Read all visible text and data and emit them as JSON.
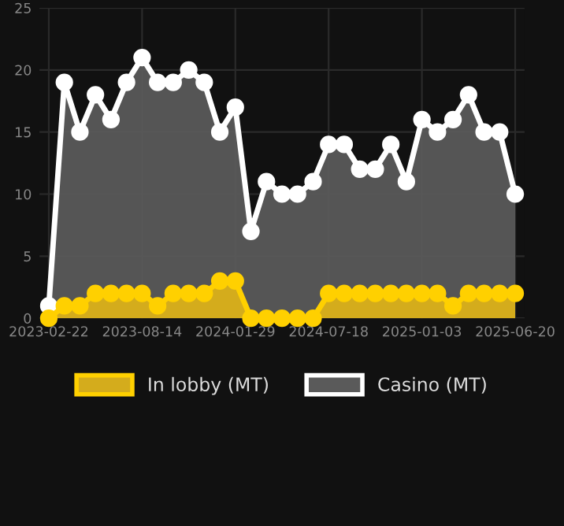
{
  "chart_data": {
    "type": "area",
    "categories": [
      "2023-02-22",
      null,
      null,
      null,
      null,
      null,
      "2023-08-14",
      null,
      null,
      null,
      null,
      null,
      "2024-01-29",
      null,
      null,
      null,
      null,
      null,
      "2024-07-18",
      null,
      null,
      null,
      null,
      null,
      "2025-01-03",
      null,
      null,
      null,
      null,
      null,
      "2025-06-20"
    ],
    "series": [
      {
        "name": "In lobby (MT)",
        "color": "#ffd000",
        "values": [
          0,
          1,
          1,
          2,
          2,
          2,
          2,
          1,
          2,
          2,
          2,
          3,
          3,
          0,
          0,
          0,
          0,
          0,
          2,
          2,
          2,
          2,
          2,
          2,
          2,
          2,
          1,
          2,
          2,
          2,
          2
        ]
      },
      {
        "name": "Casino (MT)",
        "color": "#ffffff",
        "values": [
          1,
          19,
          15,
          18,
          16,
          19,
          21,
          19,
          19,
          20,
          19,
          15,
          17,
          7,
          11,
          10,
          10,
          11,
          14,
          14,
          12,
          12,
          14,
          11,
          16,
          15,
          16,
          18,
          15,
          15,
          10
        ]
      }
    ],
    "ylim": [
      0,
      25
    ],
    "yticks": [
      0,
      5,
      10,
      15,
      20,
      25
    ],
    "grid": true,
    "legend": "bottom",
    "marker": "circle",
    "line_style": "solid"
  }
}
